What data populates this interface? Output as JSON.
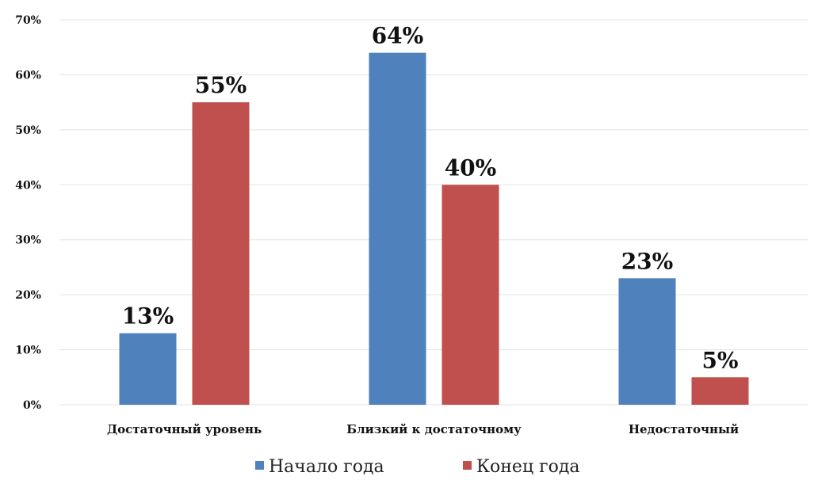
{
  "chart_data": {
    "type": "bar",
    "categories": [
      "Достаточный уровень",
      "Близкий к достаточному",
      "Недостаточный"
    ],
    "series": [
      {
        "name": "Начало года",
        "values": [
          13,
          64,
          23
        ],
        "color": "#4f81bd"
      },
      {
        "name": "Конец года",
        "values": [
          55,
          40,
          5
        ],
        "color": "#c0504d"
      }
    ],
    "ylim": [
      0,
      70
    ],
    "yticks": [
      0,
      10,
      20,
      30,
      40,
      50,
      60,
      70
    ],
    "ytick_labels": [
      "0%",
      "10%",
      "20%",
      "30%",
      "40%",
      "50%",
      "60%",
      "70%"
    ],
    "value_suffix": "%",
    "grid": true,
    "legend_position": "bottom"
  }
}
